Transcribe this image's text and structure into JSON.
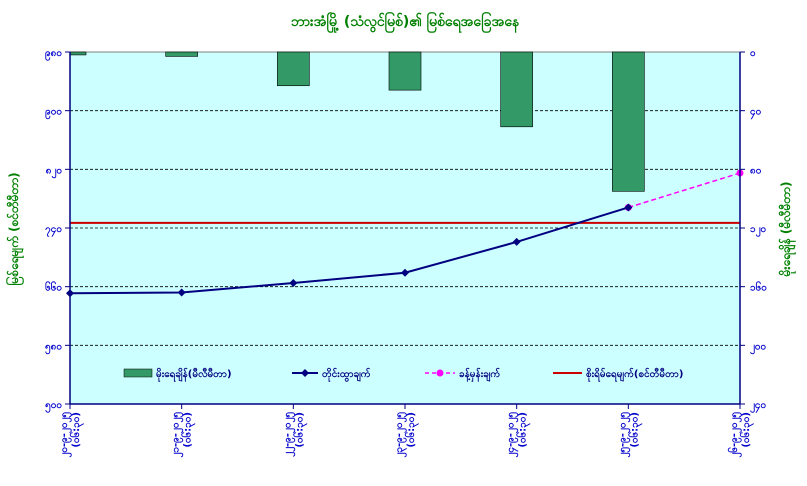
{
  "chart_data": {
    "type": "bar+line",
    "title": "ဘားအံမြို့ (သံလွင်မြစ်)၏ မြစ်ရေအခြေအနေ",
    "categories": [
      "၂၀-၉-၂၀၂၅ (၀၆:၃၀)",
      "၂၁-၉-၂၀၂၅ (၀၆:၃၀)",
      "၂၂-၉-၂၀၂၅ (၀၆:၃၀)",
      "၂၃-၉-၂၀၂၅ (၀၆:၃၀)",
      "၂၄-၉-၂၀၂၅ (၀၆:၃၀)",
      "၂၅-၉-၂၀၂၅ (၀၆:၃၀)",
      "၂၆-၉-၂၀၂၅ (၀၆:၃၀)"
    ],
    "y_left": {
      "label": "မြစ်ရေမျက် (စင်တီမီတာ)",
      "ticks": [
        "၉၈၀",
        "၉၀၀",
        "၈၂၀",
        "၇၄၀",
        "၆၆၀",
        "၅၈၀",
        "၅၀၀"
      ],
      "min": 500,
      "max": 980
    },
    "y_right": {
      "label": "မိုးရေချိန် (မီလီမီတာ)",
      "ticks": [
        "၀",
        "၄၀",
        "၈၀",
        "၁၂၀",
        "၁၆၀",
        "၂၀၀",
        "၂၄၀"
      ],
      "min": 0,
      "max": 240
    },
    "series": [
      {
        "name": "မိုးရေချိန်(မီလီမီတာ)",
        "kind": "bar",
        "axis": "right",
        "color": "#339966",
        "values": [
          2,
          3,
          23,
          26,
          51,
          95,
          null
        ]
      },
      {
        "name": "တိုင်းထွာချက်",
        "kind": "line",
        "axis": "left",
        "color": "#000080",
        "values": [
          651,
          652,
          665,
          679,
          721,
          768,
          null
        ]
      },
      {
        "name": "ခန့်မှန်းချက်",
        "kind": "dashed-line",
        "axis": "left",
        "color": "#ff00ff",
        "values": [
          null,
          null,
          null,
          null,
          null,
          768,
          815
        ]
      },
      {
        "name": "စိုးရိမ်ရေမျက်(စင်တီမီတာ)",
        "kind": "hline",
        "axis": "left",
        "color": "#cc0000",
        "value": 747
      }
    ],
    "legend_position": "bottom-inside",
    "grid": true
  },
  "colors": {
    "plot_bg": "#ccffff",
    "title": "#008000",
    "axis_label": "#008000",
    "tick_text": "#0000cc",
    "axis_line": "#000080"
  }
}
